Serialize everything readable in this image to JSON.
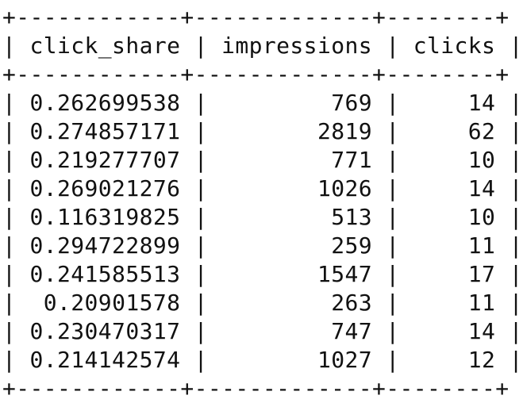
{
  "table": {
    "border_top": "+------------+-------------+--------+",
    "border_header": "+------------+-------------+--------+",
    "border_bottom": "+------------+-------------+--------+",
    "columns": [
      "click_share",
      "impressions",
      "clicks"
    ],
    "rows": [
      [
        "0.262699538",
        "769",
        "14"
      ],
      [
        "0.274857171",
        "2819",
        "62"
      ],
      [
        "0.219277707",
        "771",
        "10"
      ],
      [
        "0.269021276",
        "1026",
        "14"
      ],
      [
        "0.116319825",
        "513",
        "10"
      ],
      [
        "0.294722899",
        "259",
        "11"
      ],
      [
        "0.241585513",
        "1547",
        "17"
      ],
      [
        "0.20901578",
        "263",
        "11"
      ],
      [
        "0.230470317",
        "747",
        "14"
      ],
      [
        "0.214142574",
        "1027",
        "12"
      ]
    ]
  }
}
